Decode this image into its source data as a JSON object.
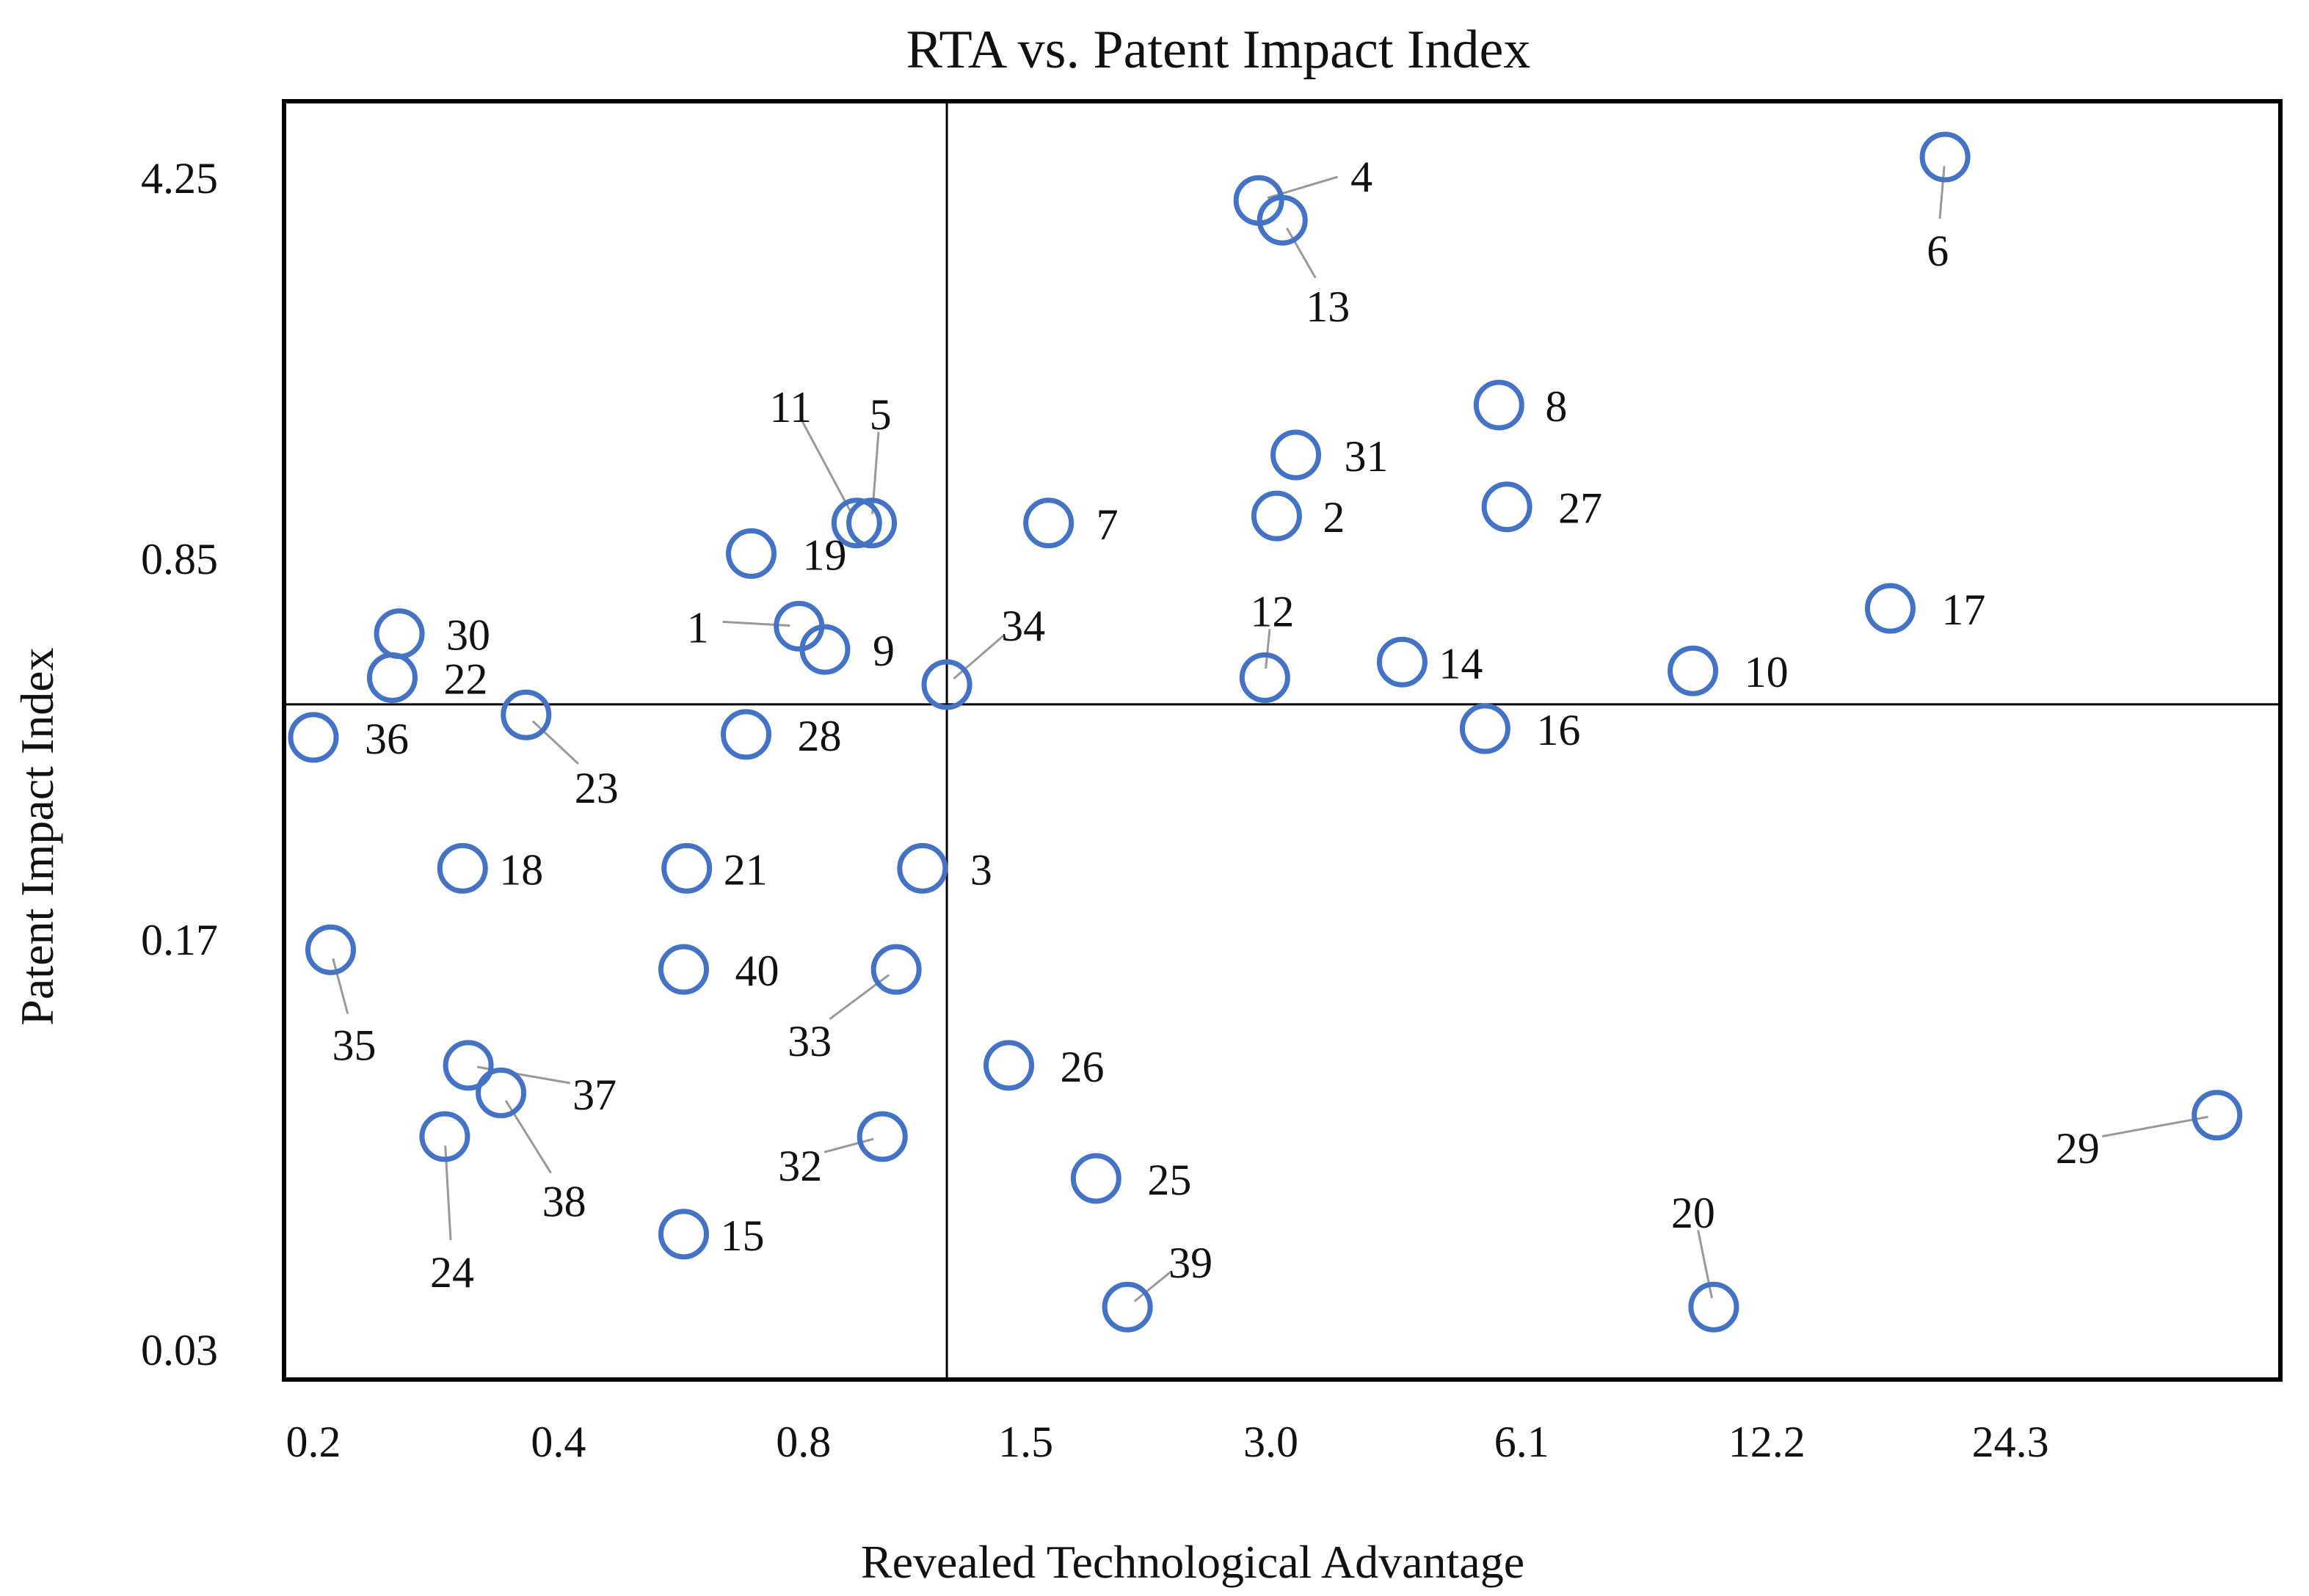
{
  "chart_data": {
    "type": "scatter",
    "title": "RTA vs. Patent Impact Index",
    "xlabel": "Revealed Technological Advantage",
    "ylabel": "Patent Impact Index",
    "x_scale": "log",
    "y_scale": "log",
    "xlim": [
      0.2,
      48
    ],
    "ylim": [
      0.03,
      5.2
    ],
    "x_ticks": [
      {
        "value": 0.2,
        "label": "0.2"
      },
      {
        "value": 0.4,
        "label": "0.4"
      },
      {
        "value": 0.8,
        "label": "0.8"
      },
      {
        "value": 1.5,
        "label": "1.5"
      },
      {
        "value": 3.0,
        "label": "3.0"
      },
      {
        "value": 6.1,
        "label": "6.1"
      },
      {
        "value": 12.2,
        "label": "12.2"
      },
      {
        "value": 24.3,
        "label": "24.3"
      }
    ],
    "y_ticks": [
      {
        "value": 0.03,
        "label": "0.03"
      },
      {
        "value": 0.17,
        "label": "0.17"
      },
      {
        "value": 0.85,
        "label": "0.85"
      },
      {
        "value": 4.25,
        "label": "4.25"
      }
    ],
    "reference_lines": {
      "x": 1.2,
      "y": 0.46
    },
    "marker_color": "#4472c4",
    "leader_color": "#999999",
    "points": [
      {
        "id": "1",
        "x": 0.79,
        "y": 0.64
      },
      {
        "id": "2",
        "x": 3.05,
        "y": 1.02
      },
      {
        "id": "3",
        "x": 1.12,
        "y": 0.23
      },
      {
        "id": "4",
        "x": 2.9,
        "y": 3.87
      },
      {
        "id": "5",
        "x": 0.97,
        "y": 0.99
      },
      {
        "id": "6",
        "x": 20.2,
        "y": 4.65
      },
      {
        "id": "7",
        "x": 1.6,
        "y": 0.99
      },
      {
        "id": "8",
        "x": 5.72,
        "y": 1.63
      },
      {
        "id": "9",
        "x": 0.85,
        "y": 0.58
      },
      {
        "id": "10",
        "x": 9.9,
        "y": 0.53
      },
      {
        "id": "11",
        "x": 0.93,
        "y": 0.99
      },
      {
        "id": "12",
        "x": 2.95,
        "y": 0.515
      },
      {
        "id": "13",
        "x": 3.1,
        "y": 3.56
      },
      {
        "id": "14",
        "x": 4.35,
        "y": 0.55
      },
      {
        "id": "15",
        "x": 0.57,
        "y": 0.049
      },
      {
        "id": "16",
        "x": 5.5,
        "y": 0.415
      },
      {
        "id": "17",
        "x": 17.3,
        "y": 0.69
      },
      {
        "id": "19",
        "x": 0.69,
        "y": 0.87
      },
      {
        "id": "18",
        "x": 0.305,
        "y": 0.23
      },
      {
        "id": "20",
        "x": 10.5,
        "y": 0.036
      },
      {
        "id": "21",
        "x": 0.575,
        "y": 0.23
      },
      {
        "id": "22",
        "x": 0.25,
        "y": 0.515
      },
      {
        "id": "23",
        "x": 0.365,
        "y": 0.44
      },
      {
        "id": "24",
        "x": 0.29,
        "y": 0.074
      },
      {
        "id": "25",
        "x": 1.83,
        "y": 0.062
      },
      {
        "id": "26",
        "x": 1.43,
        "y": 0.1
      },
      {
        "id": "27",
        "x": 5.85,
        "y": 1.06
      },
      {
        "id": "28",
        "x": 0.68,
        "y": 0.405
      },
      {
        "id": "29",
        "x": 43.6,
        "y": 0.081
      },
      {
        "id": "30",
        "x": 0.255,
        "y": 0.62
      },
      {
        "id": "31",
        "x": 3.22,
        "y": 1.32
      },
      {
        "id": "32",
        "x": 1.0,
        "y": 0.074
      },
      {
        "id": "33",
        "x": 1.04,
        "y": 0.15
      },
      {
        "id": "34",
        "x": 1.2,
        "y": 0.5
      },
      {
        "id": "35",
        "x": 0.21,
        "y": 0.163
      },
      {
        "id": "36",
        "x": 0.2,
        "y": 0.4
      },
      {
        "id": "37",
        "x": 0.31,
        "y": 0.1
      },
      {
        "id": "38",
        "x": 0.34,
        "y": 0.089
      },
      {
        "id": "39",
        "x": 2.0,
        "y": 0.036
      },
      {
        "id": "40",
        "x": 0.57,
        "y": 0.15
      }
    ]
  }
}
